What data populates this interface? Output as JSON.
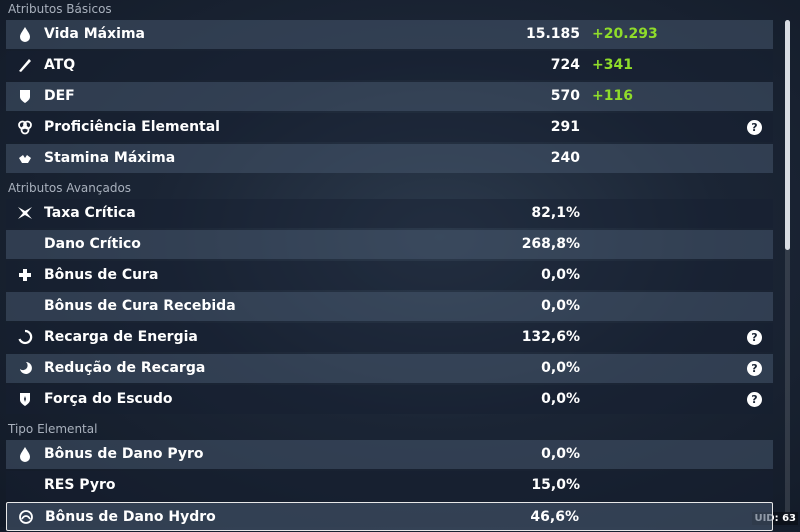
{
  "sections": [
    {
      "title": "Atributos Básicos",
      "rows": [
        {
          "label": "Vida Máxima",
          "value": "15.185",
          "bonus": "+20.293"
        },
        {
          "label": "ATQ",
          "value": "724",
          "bonus": "+341"
        },
        {
          "label": "DEF",
          "value": "570",
          "bonus": "+116"
        },
        {
          "label": "Proficiência Elemental",
          "value": "291",
          "help": true
        },
        {
          "label": "Stamina Máxima",
          "value": "240"
        }
      ]
    },
    {
      "title": "Atributos Avançados",
      "rows": [
        {
          "label": "Taxa Crítica",
          "value": "82,1%"
        },
        {
          "label": "Dano Crítico",
          "value": "268,8%"
        },
        {
          "label": "Bônus de Cura",
          "value": "0,0%"
        },
        {
          "label": "Bônus de Cura Recebida",
          "value": "0,0%"
        },
        {
          "label": "Recarga de Energia",
          "value": "132,6%",
          "help": true
        },
        {
          "label": "Redução de Recarga",
          "value": "0,0%",
          "help": true
        },
        {
          "label": "Força do Escudo",
          "value": "0,0%",
          "help": true
        }
      ]
    },
    {
      "title": "Tipo Elemental",
      "rows": [
        {
          "label": "Bônus de Dano Pyro",
          "value": "0,0%"
        },
        {
          "label": "RES Pyro",
          "value": "15,0%"
        },
        {
          "label": "Bônus de Dano Hydro",
          "value": "46,6%",
          "selected": true
        }
      ]
    }
  ],
  "uid": "UID: 63"
}
